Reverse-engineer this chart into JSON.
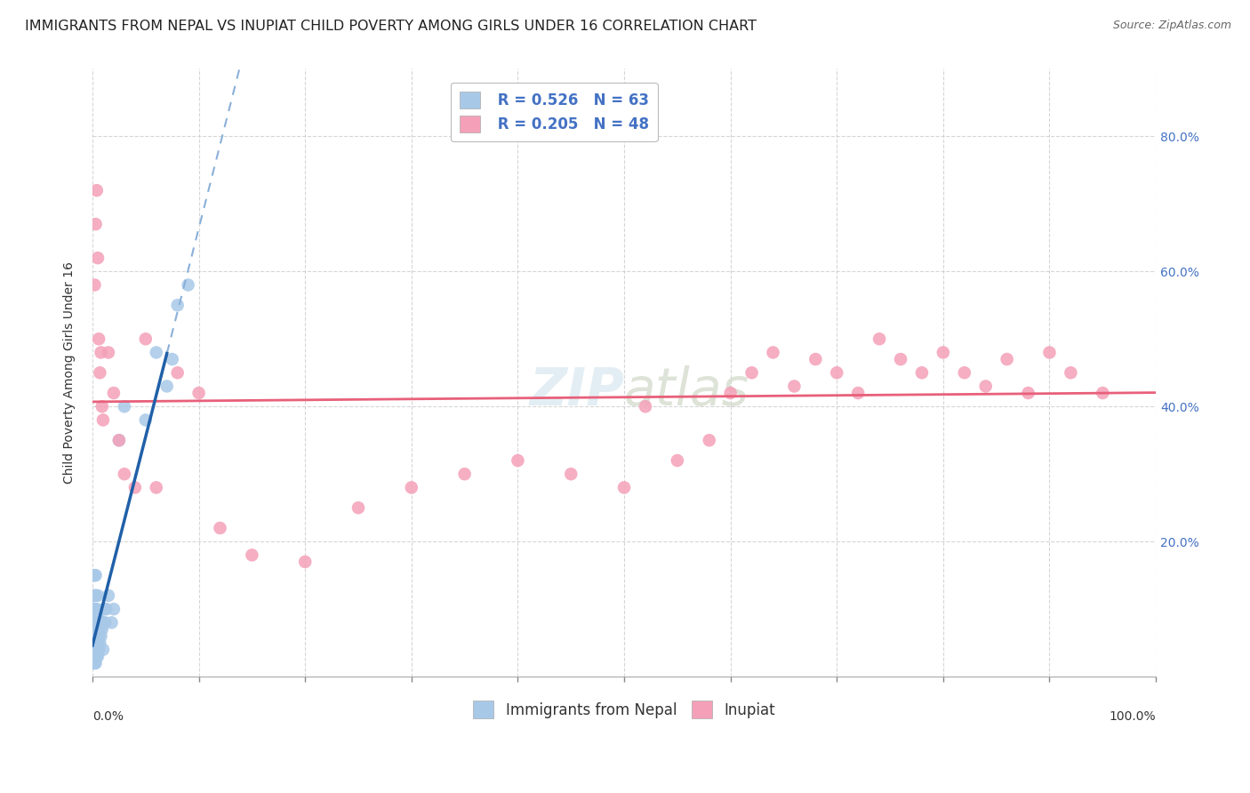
{
  "title": "IMMIGRANTS FROM NEPAL VS INUPIAT CHILD POVERTY AMONG GIRLS UNDER 16 CORRELATION CHART",
  "source": "Source: ZipAtlas.com",
  "ylabel": "Child Poverty Among Girls Under 16",
  "legend_r1": "R = 0.526",
  "legend_n1": "N = 63",
  "legend_r2": "R = 0.205",
  "legend_n2": "N = 48",
  "legend_label1": "Immigrants from Nepal",
  "legend_label2": "Inupiat",
  "blue_scatter_color": "#a8c8e8",
  "pink_scatter_color": "#f4a0b8",
  "blue_line_color": "#2060a8",
  "pink_line_color": "#e8607a",
  "dash_line_color": "#8ab0d8",
  "background_color": "#ffffff",
  "grid_color": "#cccccc",
  "nepal_x": [
    0.0,
    0.001,
    0.001,
    0.001,
    0.001,
    0.001,
    0.001,
    0.001,
    0.001,
    0.001,
    0.002,
    0.002,
    0.002,
    0.002,
    0.002,
    0.002,
    0.002,
    0.002,
    0.002,
    0.002,
    0.003,
    0.003,
    0.003,
    0.003,
    0.003,
    0.003,
    0.003,
    0.003,
    0.003,
    0.003,
    0.004,
    0.004,
    0.004,
    0.004,
    0.005,
    0.005,
    0.005,
    0.005,
    0.005,
    0.006,
    0.006,
    0.006,
    0.007,
    0.007,
    0.008,
    0.008,
    0.009,
    0.01,
    0.01,
    0.011,
    0.012,
    0.013,
    0.015,
    0.018,
    0.02,
    0.025,
    0.03,
    0.05,
    0.06,
    0.07,
    0.075,
    0.08,
    0.09
  ],
  "nepal_y": [
    0.05,
    0.02,
    0.03,
    0.04,
    0.05,
    0.06,
    0.07,
    0.08,
    0.1,
    0.12,
    0.02,
    0.03,
    0.04,
    0.05,
    0.06,
    0.07,
    0.08,
    0.1,
    0.12,
    0.15,
    0.02,
    0.03,
    0.04,
    0.05,
    0.06,
    0.07,
    0.08,
    0.1,
    0.12,
    0.15,
    0.03,
    0.05,
    0.07,
    0.1,
    0.03,
    0.05,
    0.07,
    0.09,
    0.12,
    0.04,
    0.06,
    0.08,
    0.05,
    0.07,
    0.06,
    0.08,
    0.07,
    0.04,
    0.08,
    0.1,
    0.08,
    0.1,
    0.12,
    0.08,
    0.1,
    0.35,
    0.4,
    0.38,
    0.48,
    0.43,
    0.47,
    0.55,
    0.58
  ],
  "inupiat_x": [
    0.002,
    0.003,
    0.004,
    0.005,
    0.006,
    0.007,
    0.008,
    0.009,
    0.01,
    0.015,
    0.02,
    0.025,
    0.03,
    0.04,
    0.05,
    0.06,
    0.08,
    0.1,
    0.12,
    0.15,
    0.2,
    0.25,
    0.3,
    0.35,
    0.4,
    0.45,
    0.5,
    0.52,
    0.55,
    0.58,
    0.6,
    0.62,
    0.64,
    0.66,
    0.68,
    0.7,
    0.72,
    0.74,
    0.76,
    0.78,
    0.8,
    0.82,
    0.84,
    0.86,
    0.88,
    0.9,
    0.92,
    0.95
  ],
  "inupiat_y": [
    0.58,
    0.67,
    0.72,
    0.62,
    0.5,
    0.45,
    0.48,
    0.4,
    0.38,
    0.48,
    0.42,
    0.35,
    0.3,
    0.28,
    0.5,
    0.28,
    0.45,
    0.42,
    0.22,
    0.18,
    0.17,
    0.25,
    0.28,
    0.3,
    0.32,
    0.3,
    0.28,
    0.4,
    0.32,
    0.35,
    0.42,
    0.45,
    0.48,
    0.43,
    0.47,
    0.45,
    0.42,
    0.5,
    0.47,
    0.45,
    0.48,
    0.45,
    0.43,
    0.47,
    0.42,
    0.48,
    0.45,
    0.42
  ],
  "xlim": [
    0.0,
    1.0
  ],
  "ylim": [
    0.0,
    0.9
  ],
  "y_ticks": [
    0.2,
    0.4,
    0.6,
    0.8
  ],
  "y_tick_labels": [
    "20.0%",
    "40.0%",
    "60.0%",
    "80.0%"
  ],
  "title_fontsize": 11.5,
  "axis_fontsize": 10,
  "tick_fontsize": 10,
  "legend_fontsize": 12
}
